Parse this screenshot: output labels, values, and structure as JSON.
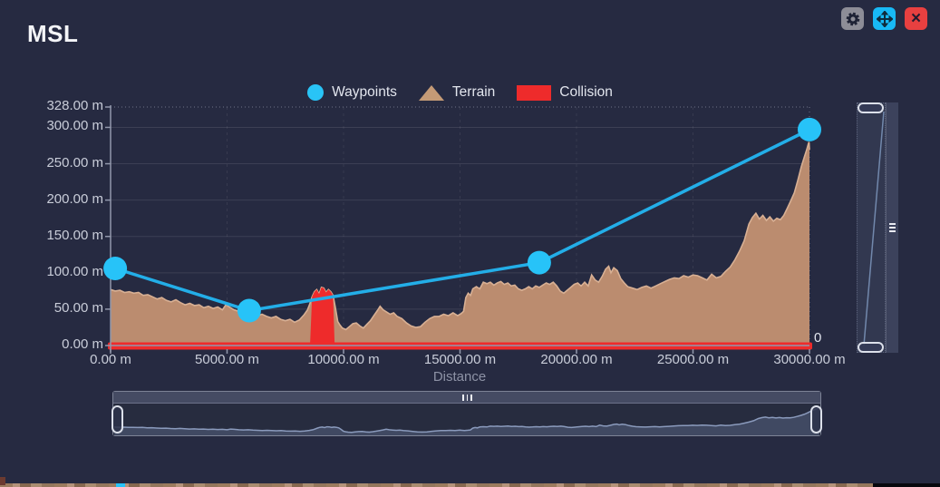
{
  "window": {
    "title": "MSL"
  },
  "toolbar": {
    "close_glyph": "×",
    "buttons": [
      {
        "id": "settings",
        "icon": "gear",
        "bg": "#8d8d97"
      },
      {
        "id": "pan",
        "icon": "move-arrows",
        "bg": "#18b9f5"
      },
      {
        "id": "close",
        "icon": "x",
        "bg": "#e84040"
      }
    ]
  },
  "legend": {
    "items": [
      {
        "label": "Waypoints",
        "shape": "circle",
        "color": "#29c4f6"
      },
      {
        "label": "Terrain",
        "shape": "triangle",
        "color": "#c49a76"
      },
      {
        "label": "Collision",
        "shape": "rect",
        "color": "#ee2b2b"
      }
    ]
  },
  "axes": {
    "y_labels": [
      "328.00 m",
      "300.00 m",
      "250.00 m",
      "200.00 m",
      "150.00 m",
      "100.00 m",
      "50.00 m",
      "0.00 m"
    ],
    "x_labels": [
      "0.00 m",
      "5000.00 m",
      "10000.00 m",
      "15000.00 m",
      "20000.00 m",
      "25000.00 m",
      "30000.00 m"
    ],
    "x_title": "Distance",
    "right_zero_label": "0"
  },
  "colors": {
    "background": "#262a41",
    "waypoint_line": "#23aee8",
    "waypoint_marker": "#27c3f8",
    "terrain_fill": "#bb8c6f",
    "terrain_stroke": "#d8b094",
    "collision": "#ee2b2b",
    "axis": "#9298ac",
    "tick_text": "#c9cdd9"
  },
  "chart_data": {
    "type": "area",
    "title": "MSL",
    "xlabel": "Distance",
    "ylabel": "",
    "xlim": [
      0,
      30000
    ],
    "ylim": [
      0,
      328
    ],
    "x_ticks": [
      0,
      5000,
      10000,
      15000,
      20000,
      25000,
      30000
    ],
    "y_ticks": [
      328,
      300,
      250,
      200,
      150,
      100,
      50,
      0
    ],
    "grid": true,
    "legend_position": "top-center",
    "series": [
      {
        "name": "Waypoints",
        "type": "line",
        "color": "#23aee8",
        "marker_color": "#27c3f8",
        "points": [
          [
            200,
            106
          ],
          [
            5950,
            48
          ],
          [
            18400,
            114
          ],
          [
            30000,
            297
          ]
        ]
      },
      {
        "name": "Terrain",
        "type": "area",
        "color": "#bb8c6f",
        "points": [
          [
            0,
            77
          ],
          [
            200,
            75
          ],
          [
            400,
            76
          ],
          [
            600,
            73
          ],
          [
            800,
            74
          ],
          [
            1000,
            72
          ],
          [
            1200,
            73
          ],
          [
            1400,
            69
          ],
          [
            1600,
            70
          ],
          [
            1800,
            67
          ],
          [
            2000,
            64
          ],
          [
            2200,
            66
          ],
          [
            2400,
            62
          ],
          [
            2600,
            60
          ],
          [
            2800,
            63
          ],
          [
            3000,
            59
          ],
          [
            3200,
            56
          ],
          [
            3400,
            58
          ],
          [
            3600,
            55
          ],
          [
            3800,
            56
          ],
          [
            4000,
            52
          ],
          [
            4200,
            54
          ],
          [
            4400,
            51
          ],
          [
            4600,
            53
          ],
          [
            4800,
            49
          ],
          [
            4950,
            56
          ],
          [
            5100,
            53
          ],
          [
            5300,
            49
          ],
          [
            5500,
            47
          ],
          [
            5700,
            49
          ],
          [
            5900,
            45
          ],
          [
            6100,
            43
          ],
          [
            6300,
            41
          ],
          [
            6500,
            43
          ],
          [
            6700,
            40
          ],
          [
            6900,
            38
          ],
          [
            7100,
            40
          ],
          [
            7300,
            36
          ],
          [
            7500,
            34
          ],
          [
            7700,
            36
          ],
          [
            7900,
            32
          ],
          [
            8100,
            35
          ],
          [
            8300,
            42
          ],
          [
            8450,
            49
          ],
          [
            8550,
            57
          ],
          [
            8650,
            67
          ],
          [
            8750,
            74
          ],
          [
            8850,
            77
          ],
          [
            8950,
            71
          ],
          [
            9050,
            80
          ],
          [
            9150,
            79
          ],
          [
            9250,
            73
          ],
          [
            9350,
            77
          ],
          [
            9450,
            74
          ],
          [
            9550,
            69
          ],
          [
            9650,
            52
          ],
          [
            9750,
            33
          ],
          [
            9850,
            28
          ],
          [
            9950,
            24
          ],
          [
            10100,
            22
          ],
          [
            10250,
            26
          ],
          [
            10400,
            30
          ],
          [
            10550,
            31
          ],
          [
            10700,
            27
          ],
          [
            10850,
            24
          ],
          [
            11000,
            29
          ],
          [
            11150,
            34
          ],
          [
            11300,
            41
          ],
          [
            11450,
            48
          ],
          [
            11570,
            54
          ],
          [
            11700,
            49
          ],
          [
            11850,
            46
          ],
          [
            12000,
            43
          ],
          [
            12150,
            45
          ],
          [
            12300,
            40
          ],
          [
            12500,
            37
          ],
          [
            12700,
            31
          ],
          [
            12900,
            27
          ],
          [
            13100,
            25
          ],
          [
            13300,
            26
          ],
          [
            13500,
            32
          ],
          [
            13700,
            37
          ],
          [
            13900,
            40
          ],
          [
            14100,
            40
          ],
          [
            14300,
            43
          ],
          [
            14500,
            41
          ],
          [
            14700,
            45
          ],
          [
            14900,
            41
          ],
          [
            15050,
            44
          ],
          [
            15150,
            47
          ],
          [
            15250,
            66
          ],
          [
            15350,
            72
          ],
          [
            15450,
            69
          ],
          [
            15550,
            78
          ],
          [
            15700,
            81
          ],
          [
            15850,
            78
          ],
          [
            16000,
            87
          ],
          [
            16150,
            85
          ],
          [
            16300,
            87
          ],
          [
            16450,
            83
          ],
          [
            16600,
            86
          ],
          [
            16750,
            88
          ],
          [
            16900,
            84
          ],
          [
            17050,
            86
          ],
          [
            17200,
            82
          ],
          [
            17350,
            83
          ],
          [
            17500,
            78
          ],
          [
            17650,
            76
          ],
          [
            17800,
            78
          ],
          [
            17950,
            81
          ],
          [
            18100,
            78
          ],
          [
            18250,
            82
          ],
          [
            18400,
            80
          ],
          [
            18550,
            83
          ],
          [
            18700,
            86
          ],
          [
            18850,
            84
          ],
          [
            19000,
            87
          ],
          [
            19150,
            82
          ],
          [
            19300,
            75
          ],
          [
            19450,
            72
          ],
          [
            19600,
            76
          ],
          [
            19750,
            80
          ],
          [
            19900,
            84
          ],
          [
            20050,
            86
          ],
          [
            20200,
            82
          ],
          [
            20350,
            87
          ],
          [
            20500,
            82
          ],
          [
            20650,
            97
          ],
          [
            20800,
            90
          ],
          [
            20950,
            87
          ],
          [
            21100,
            95
          ],
          [
            21250,
            105
          ],
          [
            21380,
            109
          ],
          [
            21480,
            100
          ],
          [
            21600,
            107
          ],
          [
            21750,
            103
          ],
          [
            21900,
            92
          ],
          [
            22050,
            86
          ],
          [
            22200,
            81
          ],
          [
            22400,
            79
          ],
          [
            22600,
            77
          ],
          [
            22800,
            80
          ],
          [
            23000,
            82
          ],
          [
            23200,
            79
          ],
          [
            23400,
            82
          ],
          [
            23600,
            85
          ],
          [
            23800,
            88
          ],
          [
            24000,
            91
          ],
          [
            24200,
            93
          ],
          [
            24400,
            92
          ],
          [
            24600,
            96
          ],
          [
            24800,
            94
          ],
          [
            25000,
            97
          ],
          [
            25200,
            96
          ],
          [
            25400,
            93
          ],
          [
            25600,
            90
          ],
          [
            25800,
            98
          ],
          [
            26000,
            93
          ],
          [
            26200,
            95
          ],
          [
            26400,
            102
          ],
          [
            26600,
            108
          ],
          [
            26800,
            118
          ],
          [
            27000,
            130
          ],
          [
            27200,
            144
          ],
          [
            27400,
            167
          ],
          [
            27550,
            176
          ],
          [
            27700,
            182
          ],
          [
            27850,
            174
          ],
          [
            28000,
            179
          ],
          [
            28150,
            172
          ],
          [
            28300,
            177
          ],
          [
            28450,
            171
          ],
          [
            28600,
            175
          ],
          [
            28750,
            173
          ],
          [
            28900,
            179
          ],
          [
            29050,
            189
          ],
          [
            29200,
            199
          ],
          [
            29350,
            210
          ],
          [
            29500,
            227
          ],
          [
            29650,
            246
          ],
          [
            29780,
            259
          ],
          [
            29880,
            269
          ],
          [
            29950,
            277
          ],
          [
            29980,
            280
          ],
          [
            30000,
            269
          ]
        ]
      },
      {
        "name": "Collision",
        "type": "area",
        "color": "#ee2b2b",
        "ground_band_m": 5,
        "zones": [
          {
            "from": 8560,
            "to": 9620
          }
        ]
      }
    ]
  }
}
